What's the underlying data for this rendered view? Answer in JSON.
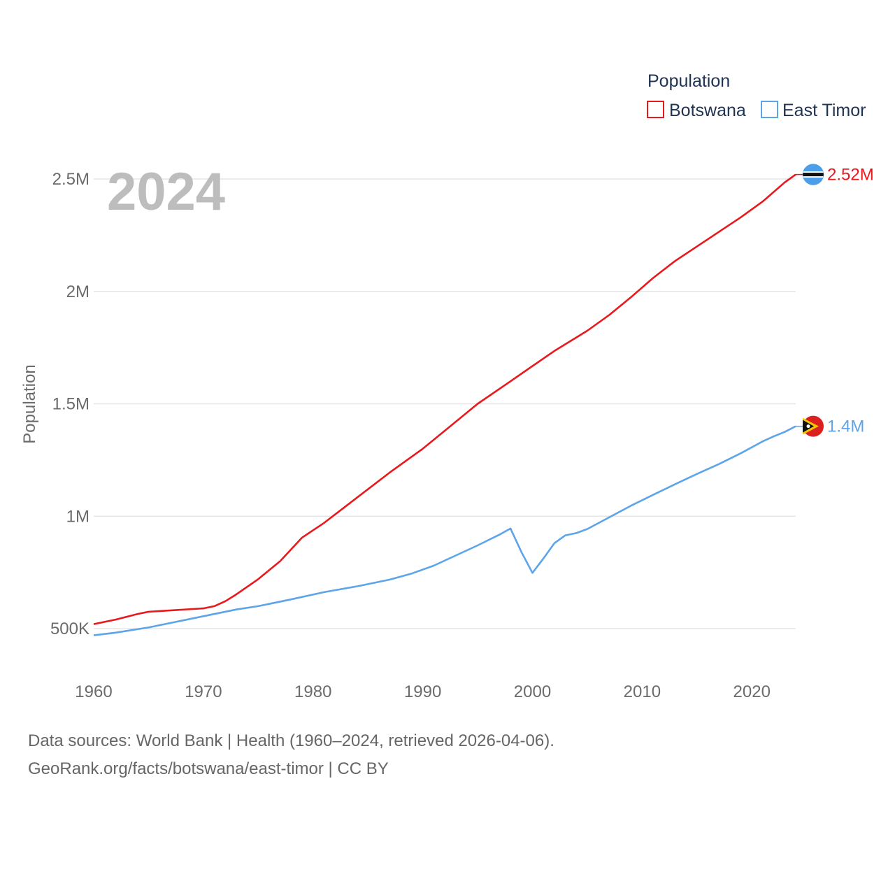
{
  "chart_data": {
    "type": "line",
    "title": "Population",
    "year_label": "2024",
    "xlabel": "",
    "ylabel": "Population",
    "xlim": [
      1960,
      2024
    ],
    "ylim": [
      450000,
      2600000
    ],
    "x_ticks": [
      1960,
      1970,
      1980,
      1990,
      2000,
      2010,
      2020
    ],
    "x_tick_labels": [
      "1960",
      "1970",
      "1980",
      "1990",
      "2000",
      "2010",
      "2020"
    ],
    "y_ticks": [
      500000,
      1000000,
      1500000,
      2000000,
      2500000
    ],
    "y_tick_labels": [
      "500K",
      "1M",
      "1.5M",
      "2M",
      "2.5M"
    ],
    "legend": {
      "title": "Population",
      "position": "top-right"
    },
    "series": [
      {
        "name": "Botswana",
        "color": "#e8191c",
        "end_label": "2.52M",
        "flag_icon": "botswana-flag-icon",
        "points": [
          [
            1960,
            520000
          ],
          [
            1962,
            540000
          ],
          [
            1964,
            565000
          ],
          [
            1965,
            575000
          ],
          [
            1966,
            578000
          ],
          [
            1968,
            584000
          ],
          [
            1970,
            590000
          ],
          [
            1971,
            600000
          ],
          [
            1972,
            622000
          ],
          [
            1973,
            652000
          ],
          [
            1975,
            720000
          ],
          [
            1977,
            800000
          ],
          [
            1979,
            905000
          ],
          [
            1981,
            970000
          ],
          [
            1983,
            1045000
          ],
          [
            1985,
            1120000
          ],
          [
            1987,
            1195000
          ],
          [
            1990,
            1300000
          ],
          [
            1992,
            1380000
          ],
          [
            1995,
            1500000
          ],
          [
            1998,
            1600000
          ],
          [
            2000,
            1668000
          ],
          [
            2002,
            1735000
          ],
          [
            2005,
            1825000
          ],
          [
            2007,
            1895000
          ],
          [
            2009,
            1975000
          ],
          [
            2011,
            2060000
          ],
          [
            2013,
            2135000
          ],
          [
            2015,
            2200000
          ],
          [
            2017,
            2265000
          ],
          [
            2019,
            2330000
          ],
          [
            2021,
            2400000
          ],
          [
            2023,
            2485000
          ],
          [
            2024,
            2520000
          ]
        ]
      },
      {
        "name": "East Timor",
        "color": "#5ea4e8",
        "end_label": "1.4M",
        "flag_icon": "east-timor-flag-icon",
        "points": [
          [
            1960,
            470000
          ],
          [
            1962,
            482000
          ],
          [
            1965,
            505000
          ],
          [
            1970,
            555000
          ],
          [
            1973,
            585000
          ],
          [
            1975,
            600000
          ],
          [
            1978,
            630000
          ],
          [
            1981,
            662000
          ],
          [
            1984,
            688000
          ],
          [
            1987,
            718000
          ],
          [
            1989,
            745000
          ],
          [
            1991,
            780000
          ],
          [
            1993,
            825000
          ],
          [
            1995,
            870000
          ],
          [
            1997,
            918000
          ],
          [
            1998,
            945000
          ],
          [
            1999,
            840000
          ],
          [
            2000,
            748000
          ],
          [
            2001,
            812000
          ],
          [
            2002,
            880000
          ],
          [
            2003,
            915000
          ],
          [
            2004,
            925000
          ],
          [
            2005,
            943000
          ],
          [
            2007,
            995000
          ],
          [
            2009,
            1047000
          ],
          [
            2011,
            1095000
          ],
          [
            2013,
            1142000
          ],
          [
            2015,
            1188000
          ],
          [
            2017,
            1232000
          ],
          [
            2019,
            1280000
          ],
          [
            2021,
            1333000
          ],
          [
            2022,
            1355000
          ],
          [
            2023,
            1375000
          ],
          [
            2024,
            1400000
          ]
        ]
      }
    ]
  },
  "footer": {
    "line1": "Data sources: World Bank | Health (1960–2024, retrieved 2026-04-06).",
    "line2": "GeoRank.org/facts/botswana/east-timor | CC BY"
  }
}
